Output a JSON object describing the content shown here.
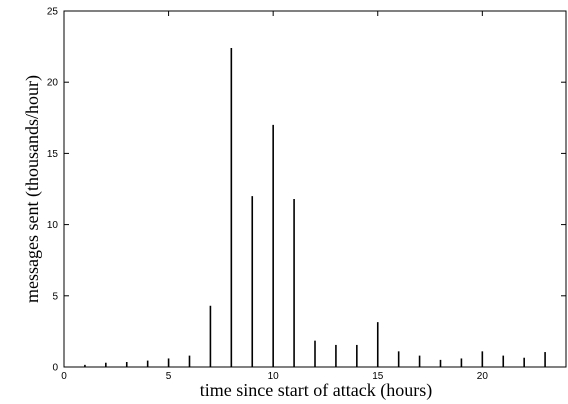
{
  "chart_data": {
    "type": "bar",
    "title": "",
    "xlabel": "time since start of attack (hours)",
    "ylabel": "messages sent (thousands/hour)",
    "xlim": [
      0,
      24
    ],
    "ylim": [
      0,
      25
    ],
    "x_ticks": [
      0,
      5,
      10,
      15,
      20
    ],
    "y_ticks": [
      0,
      5,
      10,
      15,
      20,
      25
    ],
    "x": [
      1,
      2,
      3,
      4,
      5,
      6,
      7,
      8,
      9,
      10,
      11,
      12,
      13,
      14,
      15,
      16,
      17,
      18,
      19,
      20,
      21,
      22,
      23
    ],
    "values": [
      0.15,
      0.3,
      0.35,
      0.45,
      0.6,
      0.8,
      4.3,
      22.4,
      12.0,
      17.0,
      11.8,
      1.85,
      1.55,
      1.55,
      3.15,
      1.1,
      0.8,
      0.5,
      0.6,
      1.1,
      0.8,
      0.65,
      1.05
    ],
    "grid": false,
    "legend": "none",
    "colors": {
      "bar": "#000000",
      "axis": "#000000",
      "background": "#ffffff"
    }
  }
}
